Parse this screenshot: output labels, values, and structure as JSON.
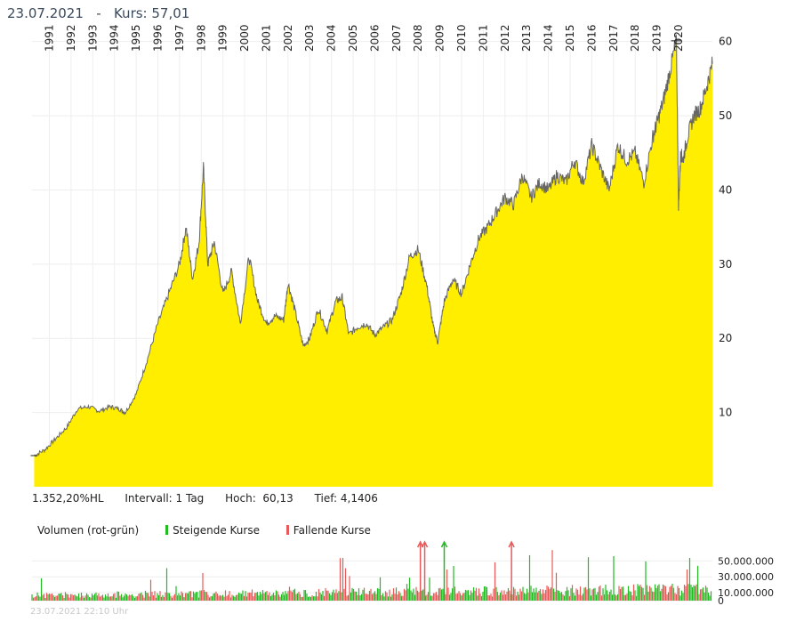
{
  "header": {
    "date": "23.07.2021",
    "separator": "-",
    "price_label": "Kurs: 57,01"
  },
  "stats": {
    "change": "1.352,20%HL",
    "interval": "Intervall: 1 Tag",
    "high": "Hoch:  60,13",
    "low": "Tief: 4,1406"
  },
  "volume_legend": {
    "title": "Volumen (rot-grün)",
    "rising": "Steigende Kurse",
    "falling": "Fallende Kurse",
    "colors": {
      "rising": "#22bb22",
      "falling": "#e85a5a"
    }
  },
  "footer": {
    "timestamp": "23.07.2021 22:10 Uhr"
  },
  "colors": {
    "area_fill": "#ffee00",
    "price_line": "#666666",
    "grid": "#eeeeee"
  },
  "chart_data": [
    {
      "type": "area",
      "series": [
        {
          "x": [
            1990.3,
            1990.8,
            1991.3,
            1991.8,
            1992.3,
            1992.8,
            1993.3,
            1993.8,
            1994.2,
            1994.5,
            1995.0,
            1995.5,
            1996.0,
            1996.5,
            1997.0,
            1997.3,
            1997.6,
            1997.9,
            1998.1,
            1998.3,
            1998.6,
            1999.0,
            1999.4,
            1999.8,
            2000.2,
            2000.6,
            2001.0,
            2001.4,
            2001.8,
            2002.0,
            2002.3,
            2002.7,
            2003.0,
            2003.4,
            2003.8,
            2004.2,
            2004.5,
            2004.8,
            2005.2,
            2005.6,
            2006.0,
            2006.4,
            2006.8,
            2007.2,
            2007.6,
            2008.0,
            2008.4,
            2008.7,
            2008.9,
            2009.2,
            2009.6,
            2010.0,
            2010.4,
            2010.8,
            2011.2,
            2011.6,
            2012.0,
            2012.4,
            2012.8,
            2013.2,
            2013.6,
            2014.0,
            2014.4,
            2014.8,
            2015.2,
            2015.6,
            2016.0,
            2016.4,
            2016.8,
            2017.2,
            2017.6,
            2018.0,
            2018.4,
            2018.8,
            2019.0,
            2019.3,
            2019.6,
            2019.9,
            2020.0,
            2020.1,
            2020.2,
            2020.4,
            2020.7,
            2021.0,
            2021.3,
            2021.56
          ],
          "y": [
            4.2,
            5.0,
            6.5,
            8.0,
            10.5,
            10.8,
            10.2,
            10.8,
            10.5,
            10.0,
            12.5,
            17.0,
            22.0,
            26.0,
            30.0,
            35.0,
            28.0,
            33.0,
            43.0,
            30.0,
            33.0,
            26.0,
            29.0,
            22.0,
            31.0,
            25.0,
            22.0,
            23.0,
            22.5,
            27.5,
            24.0,
            19.0,
            20.0,
            24.0,
            21.0,
            25.0,
            25.5,
            20.5,
            21.5,
            22.0,
            20.5,
            21.5,
            22.5,
            26.0,
            31.0,
            32.0,
            27.0,
            21.5,
            19.5,
            25.0,
            28.0,
            26.0,
            30.0,
            33.5,
            35.0,
            37.0,
            39.0,
            38.0,
            42.0,
            39.0,
            41.0,
            40.0,
            42.0,
            41.0,
            44.0,
            41.0,
            46.0,
            43.0,
            40.0,
            46.0,
            44.0,
            45.0,
            41.0,
            47.0,
            49.0,
            52.0,
            56.0,
            60.1,
            38.0,
            45.0,
            44.0,
            47.0,
            50.0,
            51.0,
            54.0,
            57.0
          ]
        }
      ],
      "x_ticks": [
        "1991",
        "1992",
        "1993",
        "1994",
        "1995",
        "1996",
        "1997",
        "1998",
        "1999",
        "2000",
        "2001",
        "2002",
        "2003",
        "2004",
        "2005",
        "2006",
        "2007",
        "2008",
        "2009",
        "2010",
        "2011",
        "2012",
        "2013",
        "2014",
        "2015",
        "2016",
        "2017",
        "2018",
        "2019",
        "2020"
      ],
      "y_ticks": [
        10,
        20,
        30,
        40,
        50,
        60
      ],
      "xlim": [
        1990.2,
        2021.56
      ],
      "ylim": [
        0,
        62
      ],
      "grid": true
    },
    {
      "type": "bar",
      "title": "Volumen (rot-grün)",
      "y_ticks": [
        "0",
        "10.000.000",
        "30.000.000",
        "50.000.000"
      ],
      "y_tick_values": [
        0,
        10000000,
        30000000,
        50000000
      ],
      "ylim": [
        0,
        65000000
      ],
      "typical_volume": 12000000,
      "out_of_range_markers": [
        {
          "x": 2008.1,
          "color": "falling"
        },
        {
          "x": 2008.3,
          "color": "falling"
        },
        {
          "x": 2009.2,
          "color": "rising"
        },
        {
          "x": 2012.3,
          "color": "falling"
        }
      ]
    }
  ]
}
